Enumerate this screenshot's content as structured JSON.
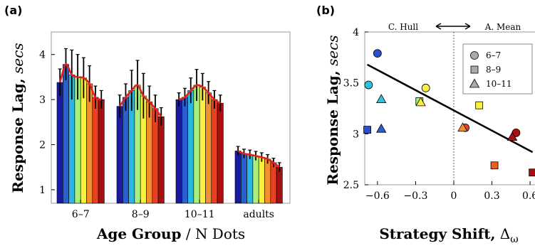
{
  "chart_data": [
    {
      "type": "bar",
      "panel_label": "(a)",
      "ylabel_bold": "Response Lag,",
      "ylabel_italic": " secs",
      "xlabel_bold": "Age Group",
      "xlabel_rest": " / N Dots",
      "ylim": [
        0.7,
        4.5
      ],
      "yticks": [
        "1",
        "2",
        "3",
        "4"
      ],
      "categories": [
        "6–7",
        "8–9",
        "10–11",
        "adults"
      ],
      "bar_colors": [
        "#1a1aa0",
        "#2a5fd0",
        "#28b8e0",
        "#a8f07a",
        "#f8f040",
        "#f09030",
        "#e84020",
        "#a81010"
      ],
      "groups": [
        {
          "category": "6–7",
          "values": [
            3.38,
            3.78,
            3.55,
            3.5,
            3.48,
            3.35,
            3.05,
            3.0
          ],
          "errors": [
            0.3,
            0.35,
            0.55,
            0.5,
            0.45,
            0.4,
            0.25,
            0.2
          ]
        },
        {
          "category": "8–9",
          "values": [
            2.85,
            3.05,
            3.2,
            3.32,
            3.08,
            2.95,
            2.8,
            2.62
          ],
          "errors": [
            0.25,
            0.3,
            0.45,
            0.55,
            0.5,
            0.35,
            0.3,
            0.2
          ]
        },
        {
          "category": "10–11",
          "values": [
            3.0,
            3.05,
            3.2,
            3.32,
            3.28,
            3.15,
            3.0,
            2.92
          ],
          "errors": [
            0.15,
            0.2,
            0.28,
            0.35,
            0.3,
            0.25,
            0.2,
            0.18
          ]
        },
        {
          "category": "adults",
          "values": [
            1.86,
            1.8,
            1.78,
            1.75,
            1.72,
            1.68,
            1.6,
            1.5
          ],
          "errors": [
            0.1,
            0.1,
            0.1,
            0.1,
            0.1,
            0.1,
            0.1,
            0.1
          ]
        }
      ],
      "fit_color": "#e8201c"
    },
    {
      "type": "scatter",
      "panel_label": "(b)",
      "ylabel_bold": "Response Lag,",
      "ylabel_italic": " secs",
      "xlabel_bold": "Strategy Shift,",
      "xlabel_symbol": " Δ",
      "xlabel_sub": "ω",
      "xlim": [
        -0.7,
        0.65
      ],
      "ylim": [
        2.5,
        4.0
      ],
      "xticks": [
        "−0.6",
        "−0.3",
        "0",
        "0.3",
        "0.6"
      ],
      "yticks": [
        "2.5",
        "3",
        "3.5",
        "4"
      ],
      "annotation_left": "C. Hull",
      "annotation_right": "A. Mean",
      "legend": [
        {
          "shape": "circle",
          "label": "6–7"
        },
        {
          "shape": "square",
          "label": "8–9"
        },
        {
          "shape": "triangle",
          "label": "10–11"
        }
      ],
      "regression": {
        "x": [
          -0.68,
          0.62
        ],
        "y": [
          3.68,
          2.82
        ]
      },
      "points": [
        {
          "shape": "circle",
          "x": -0.6,
          "y": 3.79,
          "color": "#2a4fd0"
        },
        {
          "shape": "circle",
          "x": -0.67,
          "y": 3.48,
          "color": "#30c0e0"
        },
        {
          "shape": "circle",
          "x": -0.22,
          "y": 3.45,
          "color": "#f8f040"
        },
        {
          "shape": "circle",
          "x": 0.09,
          "y": 3.06,
          "color": "#e84020"
        },
        {
          "shape": "circle",
          "x": 0.49,
          "y": 3.01,
          "color": "#a81010"
        },
        {
          "shape": "square",
          "x": -0.68,
          "y": 3.04,
          "color": "#2a4fd0"
        },
        {
          "shape": "square",
          "x": -0.27,
          "y": 3.32,
          "color": "#a8f07a"
        },
        {
          "shape": "square",
          "x": 0.2,
          "y": 3.28,
          "color": "#f8f040"
        },
        {
          "shape": "square",
          "x": 0.32,
          "y": 2.69,
          "color": "#e86020"
        },
        {
          "shape": "square",
          "x": 0.62,
          "y": 2.62,
          "color": "#a81010"
        },
        {
          "shape": "triangle",
          "x": -0.57,
          "y": 3.05,
          "color": "#2a5fd0"
        },
        {
          "shape": "triangle",
          "x": -0.57,
          "y": 3.34,
          "color": "#30c0e0"
        },
        {
          "shape": "triangle",
          "x": -0.26,
          "y": 3.31,
          "color": "#f8f040"
        },
        {
          "shape": "triangle",
          "x": 0.07,
          "y": 3.06,
          "color": "#f09030"
        },
        {
          "shape": "triangle",
          "x": 0.46,
          "y": 2.97,
          "color": "#a81010"
        }
      ]
    }
  ]
}
